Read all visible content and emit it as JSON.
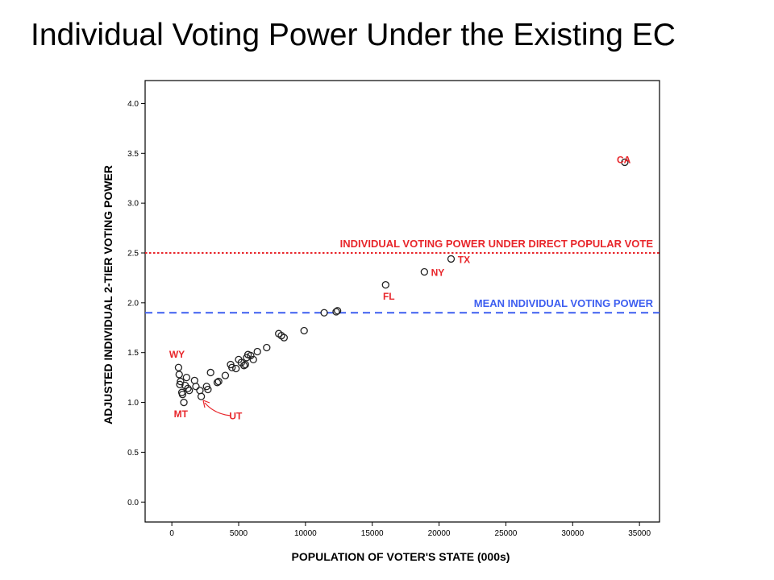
{
  "slide": {
    "title": "Individual Voting Power Under the Existing EC"
  },
  "chart_data": {
    "type": "scatter",
    "title": "Individual Voting Power Under the Existing EC",
    "xlabel": "POPULATION OF VOTER'S STATE (000s)",
    "ylabel": "ADJUSTED INDIVIDUAL 2-TIER VOTING POWER",
    "xlim": [
      -2000,
      36500
    ],
    "ylim": [
      -0.2,
      4.23
    ],
    "x_ticks": [
      0,
      5000,
      10000,
      15000,
      20000,
      25000,
      30000,
      35000
    ],
    "y_ticks": [
      0.0,
      0.5,
      1.0,
      1.5,
      2.0,
      2.5,
      3.0,
      3.5,
      4.0
    ],
    "y_tick_labels": [
      "0.0",
      "0.5",
      "1.0",
      "1.5",
      "2.0",
      "2.5",
      "3.0",
      "3.5",
      "4.0"
    ],
    "grid": false,
    "marker": "hollow-circle",
    "reference_lines": [
      {
        "label": "INDIVIDUAL VOTING POWER UNDER DIRECT POPULAR VOTE",
        "y": 2.5,
        "color": "#e8262b",
        "style": "dotted"
      },
      {
        "label": "MEAN INDIVIDUAL VOTING POWER",
        "y": 1.9,
        "color": "#3d5ef0",
        "style": "dashed"
      }
    ],
    "annotations": [
      {
        "text": "CA",
        "x": 33300,
        "y": 3.4,
        "color": "#e8262b"
      },
      {
        "text": "TX",
        "x": 21400,
        "y": 2.4,
        "color": "#e8262b"
      },
      {
        "text": "NY",
        "x": 19400,
        "y": 2.27,
        "color": "#e8262b"
      },
      {
        "text": "FL",
        "x": 15800,
        "y": 2.03,
        "color": "#e8262b"
      },
      {
        "text": "WY",
        "x": -200,
        "y": 1.45,
        "color": "#e8262b"
      },
      {
        "text": "MT",
        "x": 150,
        "y": 0.85,
        "color": "#e8262b"
      },
      {
        "text": "UT",
        "x": 4300,
        "y": 0.83,
        "color": "#e8262b"
      }
    ],
    "series": [
      {
        "x": [
          33900,
          20900,
          18900,
          16000,
          12400,
          12300,
          11400,
          9900,
          8400,
          8200,
          8000,
          7100,
          6400,
          6100,
          5900,
          5700,
          5600,
          5500,
          5400,
          5200,
          5000,
          4800,
          4500,
          4400,
          4000,
          3500,
          3400,
          2900,
          2700,
          2600,
          2200,
          2100,
          1800,
          1700,
          1300,
          1200,
          1100,
          1000,
          900,
          800,
          750,
          650,
          600,
          550,
          500
        ],
        "y": [
          3.41,
          2.44,
          2.31,
          2.18,
          1.92,
          1.91,
          1.9,
          1.72,
          1.65,
          1.67,
          1.69,
          1.55,
          1.51,
          1.43,
          1.47,
          1.48,
          1.45,
          1.38,
          1.37,
          1.4,
          1.43,
          1.34,
          1.35,
          1.38,
          1.27,
          1.21,
          1.2,
          1.3,
          1.13,
          1.16,
          1.06,
          1.12,
          1.16,
          1.22,
          1.12,
          1.14,
          1.25,
          1.17,
          1.0,
          1.08,
          1.1,
          1.21,
          1.18,
          1.28,
          1.35
        ]
      }
    ]
  }
}
